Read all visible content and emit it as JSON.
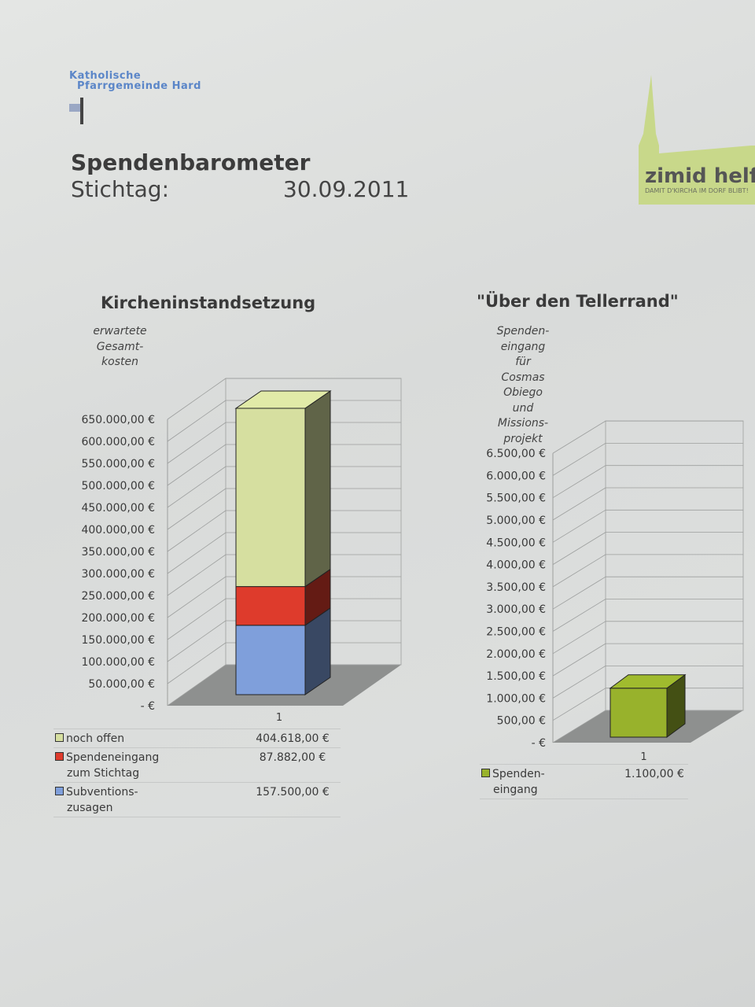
{
  "header": {
    "logo_left": [
      "Katholische",
      "Pfarrgemeinde Hard"
    ],
    "title": "Spendenbarometer",
    "stichtag_label": "Stichtag:",
    "date": "30.09.2011",
    "logo_right": {
      "name": "zimid helfo",
      "tagline": "DAMIT D'KIRCHA IM DORF BLIBT!",
      "color": "#c8d88a"
    }
  },
  "chart_data": [
    {
      "type": "bar",
      "stacked": true,
      "style": "3d-column",
      "title": "Kircheninstandsetzung",
      "ylabel": "erwartete Gesamt- kosten",
      "ylabel_lines": [
        "erwartete",
        "Gesamt-",
        "kosten"
      ],
      "categories": [
        "1"
      ],
      "ylim": [
        0,
        650000
      ],
      "yticks": [
        "- €",
        "50.000,00 €",
        "100.000,00 €",
        "150.000,00 €",
        "200.000,00 €",
        "250.000,00 €",
        "300.000,00 €",
        "350.000,00 €",
        "400.000,00 €",
        "450.000,00 €",
        "500.000,00 €",
        "550.000,00 €",
        "600.000,00 €",
        "650.000,00 €"
      ],
      "grid": true,
      "series": [
        {
          "name": "Subventions- zusagen",
          "lines": [
            "Subventions-",
            "zusagen"
          ],
          "values": [
            157500
          ],
          "label": "157.500,00 €",
          "color": "#7f9fdb"
        },
        {
          "name": "Spendeneingang zum Stichtag",
          "lines": [
            "Spendeneingang",
            "zum Stichtag"
          ],
          "values": [
            87882
          ],
          "label": "87.882,00 €",
          "color": "#de3b2c"
        },
        {
          "name": "noch offen",
          "lines": [
            "noch offen"
          ],
          "values": [
            404618
          ],
          "label": "404.618,00 €",
          "color": "#d6dfa0"
        }
      ],
      "legend_order": [
        2,
        1,
        0
      ]
    },
    {
      "type": "bar",
      "style": "3d-column",
      "title": "\"Über den Tellerrand\"",
      "ylabel": "Spenden- eingang für Cosmas Obiego und Missions- projekt",
      "ylabel_lines": [
        "Spenden-",
        "eingang",
        "für",
        "Cosmas",
        "Obiego",
        "und",
        "Missions-",
        "projekt"
      ],
      "categories": [
        "1"
      ],
      "ylim": [
        0,
        6500
      ],
      "yticks": [
        "- €",
        "500,00 €",
        "1.000,00 €",
        "1.500,00 €",
        "2.000,00 €",
        "2.500,00 €",
        "3.000,00 €",
        "3.500,00 €",
        "4.000,00 €",
        "4.500,00 €",
        "5.000,00 €",
        "5.500,00 €",
        "6.000,00 €",
        "6.500,00 €"
      ],
      "grid": true,
      "series": [
        {
          "name": "Spenden- eingang",
          "lines": [
            "Spenden-",
            "eingang"
          ],
          "values": [
            1100
          ],
          "label": "1.100,00 €",
          "color": "#98b22c"
        }
      ],
      "legend_order": [
        0
      ]
    }
  ]
}
